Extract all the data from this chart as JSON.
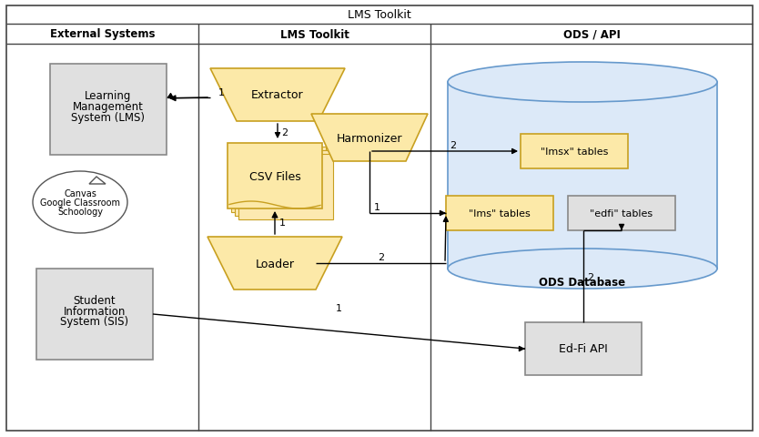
{
  "title": "LMS Toolkit",
  "col1_title": "External Systems",
  "col2_title": "LMS Toolkit",
  "col3_title": "ODS / API",
  "fig_width": 8.34,
  "fig_height": 4.81,
  "bg_color": "#ffffff",
  "box_border_color": "#888888",
  "box_fill_gray": "#e0e0e0",
  "box_fill_yellow": "#fce9a8",
  "box_fill_yellow_dark": "#f5d87a",
  "db_fill": "#dce9f8",
  "db_border": "#6699cc",
  "arrow_color": "#000000",
  "line_color": "#333333",
  "header_line_color": "#444444",
  "trap_edge": "#c8a020",
  "trap_fill": "#fce9a8",
  "lmsx_edge": "#c8a020",
  "lms_t_edge": "#c8a020",
  "edfi_edge": "#888888"
}
